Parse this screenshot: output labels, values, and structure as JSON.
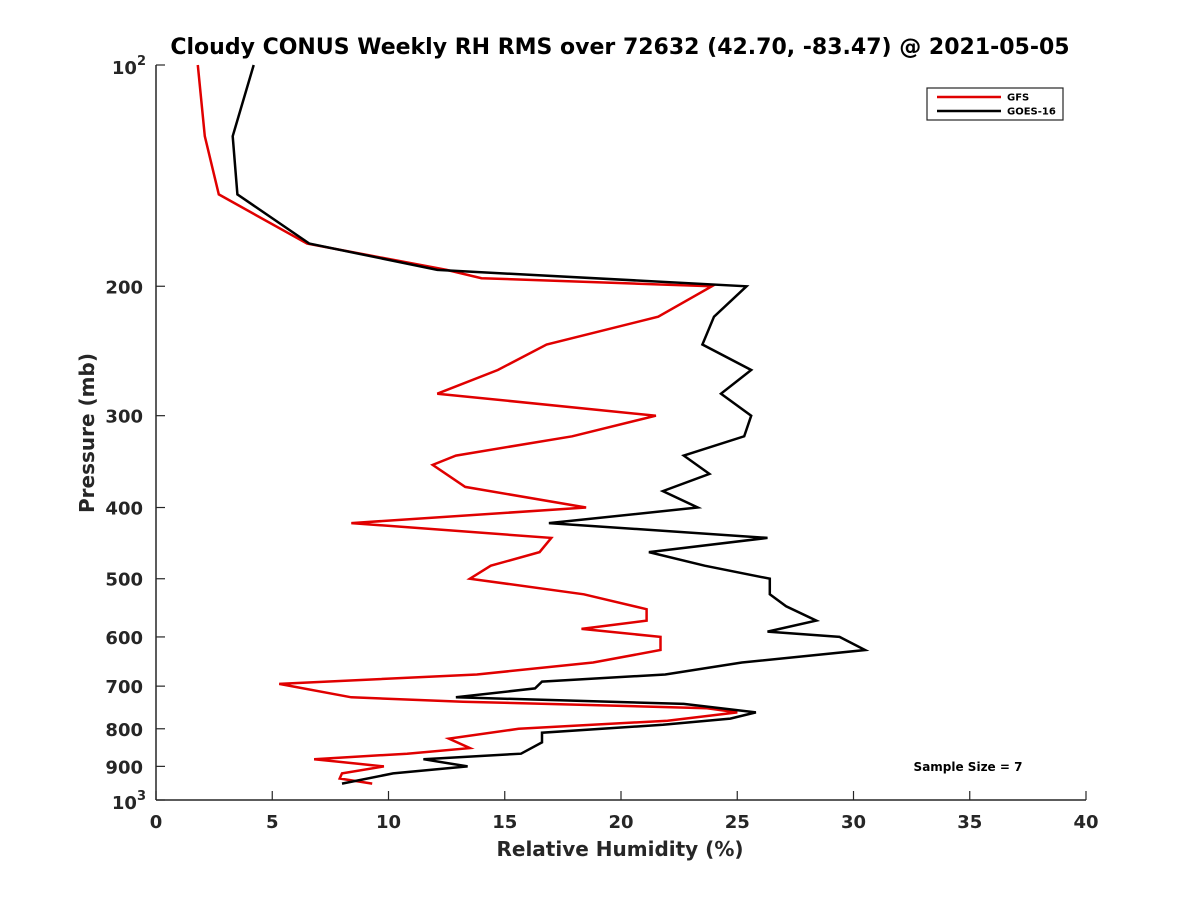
{
  "chart_data": {
    "type": "line",
    "title": "Cloudy CONUS Weekly RH RMS over 72632 (42.70, -83.47) @ 2021-05-05",
    "xlabel": "Relative Humidity (%)",
    "ylabel": "Pressure (mb)",
    "xlim": [
      0,
      40
    ],
    "ylim": [
      1000,
      100
    ],
    "y_scale": "log",
    "x_ticks": [
      0,
      5,
      10,
      15,
      20,
      25,
      30,
      35,
      40
    ],
    "y_ticks": [
      {
        "value": 100,
        "label": "10",
        "sup": "2"
      },
      {
        "value": 200,
        "label": "200"
      },
      {
        "value": 300,
        "label": "300"
      },
      {
        "value": 400,
        "label": "400"
      },
      {
        "value": 500,
        "label": "500"
      },
      {
        "value": 600,
        "label": "600"
      },
      {
        "value": 700,
        "label": "700"
      },
      {
        "value": 800,
        "label": "800"
      },
      {
        "value": 900,
        "label": "900"
      },
      {
        "value": 1000,
        "label": "10",
        "sup": "3"
      }
    ],
    "grid": false,
    "legend_position": "top-right",
    "series": [
      {
        "name": "GFS",
        "color": "#e00000",
        "points": [
          [
            1.8,
            100
          ],
          [
            2.1,
            125
          ],
          [
            2.7,
            150
          ],
          [
            6.5,
            175
          ],
          [
            12.5,
            190
          ],
          [
            14.0,
            195
          ],
          [
            23.9,
            200
          ],
          [
            21.6,
            220
          ],
          [
            16.8,
            240
          ],
          [
            14.7,
            260
          ],
          [
            12.1,
            280
          ],
          [
            21.5,
            300
          ],
          [
            17.9,
            320
          ],
          [
            12.9,
            340
          ],
          [
            11.9,
            350
          ],
          [
            13.3,
            375
          ],
          [
            18.5,
            400
          ],
          [
            8.4,
            420
          ],
          [
            17.0,
            440
          ],
          [
            16.5,
            460
          ],
          [
            14.4,
            480
          ],
          [
            13.5,
            500
          ],
          [
            18.4,
            525
          ],
          [
            21.1,
            550
          ],
          [
            21.1,
            570
          ],
          [
            18.3,
            585
          ],
          [
            21.7,
            600
          ],
          [
            21.7,
            625
          ],
          [
            18.8,
            650
          ],
          [
            13.8,
            675
          ],
          [
            5.3,
            695
          ],
          [
            8.4,
            725
          ],
          [
            13.2,
            735
          ],
          [
            23.7,
            750
          ],
          [
            25.0,
            760
          ],
          [
            22.0,
            780
          ],
          [
            15.6,
            800
          ],
          [
            12.6,
            825
          ],
          [
            13.5,
            850
          ],
          [
            10.8,
            865
          ],
          [
            6.8,
            880
          ],
          [
            9.8,
            900
          ],
          [
            8.0,
            920
          ],
          [
            7.9,
            935
          ],
          [
            9.3,
            950
          ]
        ]
      },
      {
        "name": "GOES-16",
        "color": "#000000",
        "points": [
          [
            4.2,
            100
          ],
          [
            3.3,
            125
          ],
          [
            3.5,
            150
          ],
          [
            6.6,
            175
          ],
          [
            12.1,
            190
          ],
          [
            25.4,
            200
          ],
          [
            24.0,
            220
          ],
          [
            23.5,
            240
          ],
          [
            25.6,
            260
          ],
          [
            24.3,
            280
          ],
          [
            25.6,
            300
          ],
          [
            25.3,
            320
          ],
          [
            22.7,
            340
          ],
          [
            23.8,
            360
          ],
          [
            21.8,
            380
          ],
          [
            23.3,
            400
          ],
          [
            16.9,
            420
          ],
          [
            26.3,
            440
          ],
          [
            21.2,
            460
          ],
          [
            23.6,
            480
          ],
          [
            26.4,
            500
          ],
          [
            26.4,
            525
          ],
          [
            27.1,
            545
          ],
          [
            28.4,
            570
          ],
          [
            26.3,
            590
          ],
          [
            29.4,
            600
          ],
          [
            30.5,
            625
          ],
          [
            25.2,
            650
          ],
          [
            21.9,
            675
          ],
          [
            16.6,
            690
          ],
          [
            16.3,
            705
          ],
          [
            12.9,
            725
          ],
          [
            22.7,
            740
          ],
          [
            25.8,
            760
          ],
          [
            24.7,
            775
          ],
          [
            21.8,
            790
          ],
          [
            16.6,
            810
          ],
          [
            16.6,
            835
          ],
          [
            15.7,
            865
          ],
          [
            11.5,
            880
          ],
          [
            13.4,
            900
          ],
          [
            10.2,
            920
          ],
          [
            8.0,
            950
          ]
        ]
      }
    ],
    "annotations": [
      "Sample Size = 7"
    ]
  }
}
